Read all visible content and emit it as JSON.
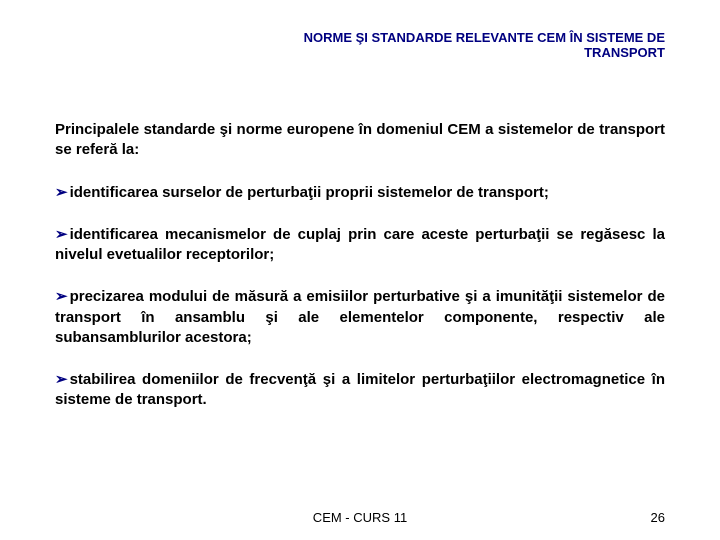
{
  "header": {
    "title": "NORME ŞI STANDARDE RELEVANTE CEM ÎN SISTEME DE TRANSPORT",
    "color": "#000080",
    "fontsize": 13
  },
  "intro": {
    "text": "Principalele standarde şi norme europene în domeniul CEM a sistemelor de transport se referă la:",
    "fontsize": 15
  },
  "bullets": [
    {
      "text": "identificarea surselor de perturbaţii proprii sistemelor de transport;"
    },
    {
      "text": "identificarea mecanismelor de cuplaj prin care aceste perturbaţii se regăsesc la nivelul evetualilor receptorilor;"
    },
    {
      "text": "precizarea modului de măsură a emisiilor perturbative şi a imunităţii sistemelor de transport în ansamblu şi ale elementelor componente, respectiv ale subansamblurilor acestora;"
    },
    {
      "text": "stabilirea domeniilor de frecvenţă şi a limitelor perturbaţiilor electromagnetice în sisteme de transport."
    }
  ],
  "bullet_marker": {
    "glyph": "➢",
    "color": "#000080"
  },
  "footer": {
    "center": "CEM - CURS 11",
    "page": "26",
    "fontsize": 13
  },
  "colors": {
    "background": "#ffffff",
    "text": "#000000",
    "accent": "#000080"
  }
}
